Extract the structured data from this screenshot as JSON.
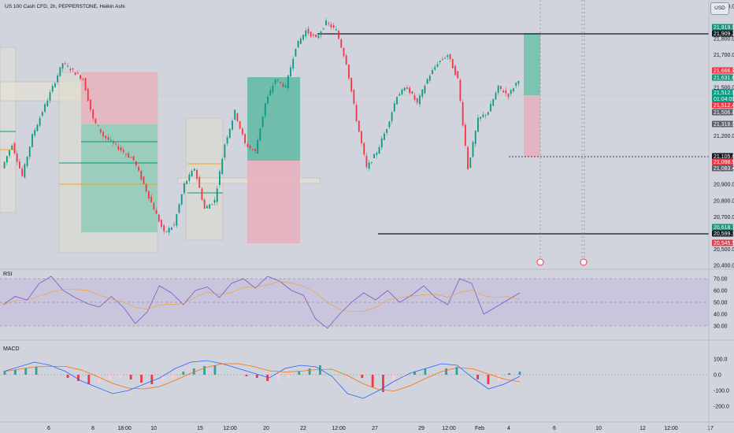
{
  "header": {
    "symbol_label": "US 100 Cash CFD, 2h, PEPPERSTONE, Heikin Ashi",
    "currency_button": "USD"
  },
  "price_axis": {
    "ticks": [
      "22,000.0",
      "21,800.0",
      "21,700.0",
      "21,600.0",
      "21,500.0",
      "21,400.0",
      "21,200.0",
      "21,000.0",
      "20,900.0",
      "20,800.0",
      "20,700.0",
      "20,600.0",
      "20,500.0",
      "20,400.0"
    ],
    "badges": [
      {
        "value": "21,919.9",
        "color": "#089981"
      },
      {
        "value": "21,909.2",
        "color": "#131722"
      },
      {
        "value": "21,666.8",
        "color": "#f23645"
      },
      {
        "value": "21,631.6",
        "color": "#089981"
      },
      {
        "value": "21,512.9",
        "color": "#089981"
      },
      {
        "value": "01:04:09",
        "color": "#089981"
      },
      {
        "value": "21,512.4",
        "color": "#f23645"
      },
      {
        "value": "21,506.8",
        "color": "#5d606b"
      },
      {
        "value": "21,318.0",
        "color": "#5d606b"
      },
      {
        "value": "21,105.6",
        "color": "#131722"
      },
      {
        "value": "21,098.5",
        "color": "#f23645"
      },
      {
        "value": "21,083.4",
        "color": "#5d606b"
      },
      {
        "value": "20,618.7",
        "color": "#089981"
      },
      {
        "value": "20,599.3",
        "color": "#131722"
      },
      {
        "value": "20,545.5",
        "color": "#f23645"
      }
    ]
  },
  "rsi_panel": {
    "label": "RSI",
    "ticks": [
      "70.00",
      "60.00",
      "50.00",
      "40.00",
      "30.00"
    ]
  },
  "macd_panel": {
    "label": "MACD",
    "ticks": [
      "100.0",
      "0.0",
      "-100.0",
      "-200.0"
    ]
  },
  "time_axis": {
    "labels": [
      "6",
      "8",
      "18:00",
      "10",
      "15",
      "12:00",
      "20",
      "22",
      "12:00",
      "27",
      "29",
      "12:00",
      "Feb",
      "4",
      "6",
      "10",
      "12",
      "12:00",
      "17"
    ]
  },
  "colors": {
    "up": "#089981",
    "down": "#f23645",
    "rsi": "#7e57c2",
    "macd": "#2962ff",
    "signal": "#ff6d00",
    "bg": "#d1d4dc"
  },
  "chart_data": [
    {
      "type": "candlestick",
      "title": "US 100 Cash CFD, 2h, PEPPERSTONE, Heikin Ashi",
      "y_range": [
        20400,
        22000
      ],
      "levels": [
        21909.2,
        21105.6,
        20599.3
      ],
      "close_path": [
        21000,
        21150,
        20950,
        21200,
        21350,
        21500,
        21650,
        21600,
        21550,
        21300,
        21200,
        21150,
        21100,
        21050,
        20900,
        20750,
        20600,
        20650,
        20900,
        21000,
        20750,
        20800,
        21150,
        21350,
        21150,
        21100,
        21400,
        21550,
        21500,
        21750,
        21850,
        21800,
        21900,
        21850,
        21650,
        21300,
        21000,
        21100,
        21250,
        21450,
        21500,
        21400,
        21550,
        21650,
        21700,
        21550,
        21000,
        21300,
        21350,
        21500,
        21450,
        21550
      ]
    },
    {
      "type": "line",
      "title": "RSI",
      "y_range": [
        20,
        80
      ],
      "bands": [
        70,
        50,
        30
      ],
      "series": [
        {
          "values": [
            48,
            55,
            52,
            66,
            72,
            60,
            54,
            49,
            46,
            55,
            46,
            32,
            42,
            64,
            58,
            48,
            60,
            63,
            54,
            66,
            70,
            62,
            72,
            68,
            60,
            56,
            36,
            28,
            40,
            50,
            58,
            52,
            60,
            50,
            56,
            64,
            54,
            48,
            70,
            66,
            40,
            46,
            52,
            58
          ]
        }
      ]
    },
    {
      "type": "bar",
      "title": "MACD",
      "y_range": [
        -200,
        100
      ],
      "histogram": [
        20,
        30,
        40,
        50,
        40,
        20,
        -20,
        -40,
        -60,
        -50,
        -30,
        -20,
        -30,
        -50,
        -60,
        -40,
        -20,
        20,
        40,
        55,
        60,
        40,
        20,
        -10,
        -20,
        -40,
        -30,
        -20,
        20,
        40,
        60,
        50,
        30,
        10,
        -20,
        -80,
        -110,
        -60,
        -20,
        20,
        40,
        30,
        40,
        50,
        20,
        -30,
        -60,
        -40,
        10,
        20
      ],
      "series": [
        {
          "values": [
            20,
            50,
            80,
            60,
            20,
            -40,
            -80,
            -120,
            -100,
            -60,
            -20,
            40,
            80,
            90,
            70,
            40,
            10,
            -20,
            40,
            60,
            50,
            -10,
            -120,
            -150,
            -100,
            -40,
            10,
            40,
            70,
            60,
            -20,
            -90,
            -60,
            -10
          ]
        }
      ]
    }
  ]
}
